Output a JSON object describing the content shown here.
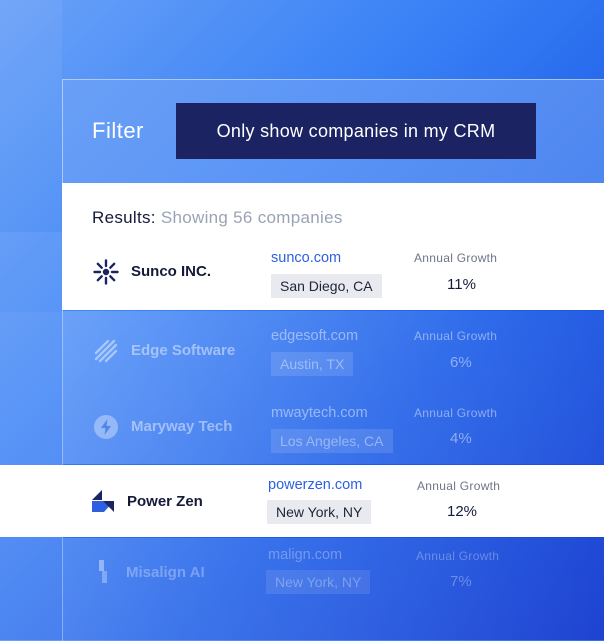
{
  "filter": {
    "label": "Filter",
    "value": "Only show companies in my CRM"
  },
  "results": {
    "label": "Results:",
    "summary": "Showing 56 companies"
  },
  "companies": [
    {
      "name": "Sunco INC.",
      "domain": "sunco.com",
      "location": "San Diego, CA",
      "growth_label": "Annual Growth",
      "growth": "11%",
      "icon": "sunburst-logo-icon"
    },
    {
      "name": "Edge Software",
      "domain": "edgesoft.com",
      "location": "Austin, TX",
      "growth_label": "Annual Growth",
      "growth": "6%",
      "icon": "diagonal-stripes-logo-icon"
    },
    {
      "name": "Maryway Tech",
      "domain": "mwaytech.com",
      "location": "Los Angeles, CA",
      "growth_label": "Annual Growth",
      "growth": "4%",
      "icon": "lightning-bolt-logo-icon"
    },
    {
      "name": "Power Zen",
      "domain": "powerzen.com",
      "location": "New York, NY",
      "growth_label": "Annual Growth",
      "growth": "12%",
      "icon": "stacked-blocks-logo-icon"
    },
    {
      "name": "Misalign AI",
      "domain": "malign.com",
      "location": "New York, NY",
      "growth_label": "Annual Growth",
      "growth": "7%",
      "icon": "offset-bars-logo-icon"
    }
  ],
  "colors": {
    "pill_bg": "#1b2363",
    "link": "#2d5fe0",
    "text_dark": "#151a3a"
  }
}
